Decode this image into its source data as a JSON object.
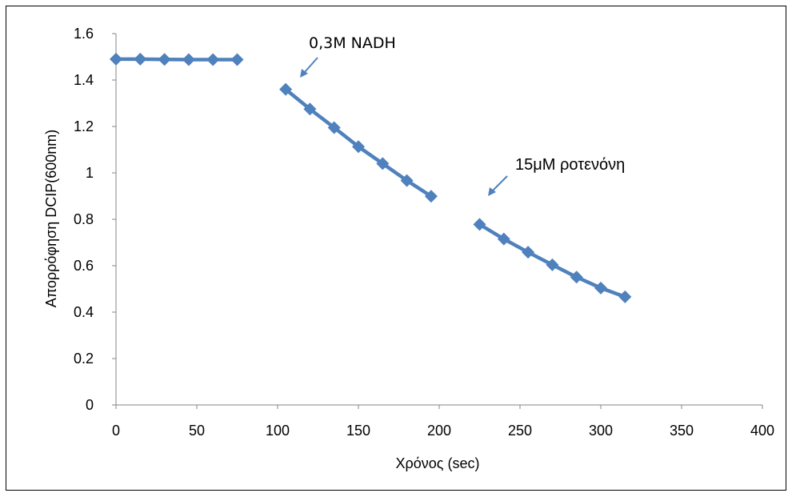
{
  "chart_data": {
    "type": "line",
    "title": "",
    "xlabel": "Χρόνος (sec)",
    "ylabel": "Απορρόφηση DCIP(600nm)",
    "xlim": [
      0,
      400
    ],
    "ylim": [
      0,
      1.6
    ],
    "x_ticks": [
      0,
      50,
      100,
      150,
      200,
      250,
      300,
      350,
      400
    ],
    "y_ticks": [
      0,
      0.2,
      0.4,
      0.6,
      0.8,
      1.0,
      1.2,
      1.4,
      1.6
    ],
    "x_tick_labels": [
      "0",
      "50",
      "100",
      "150",
      "200",
      "250",
      "300",
      "350",
      "400"
    ],
    "y_tick_labels": [
      "0",
      "0.2",
      "0.4",
      "0.6",
      "0.8",
      "1",
      "1.2",
      "1.4",
      "1.6"
    ],
    "grid": false,
    "legend": "none",
    "marker": "diamond",
    "color": "#4F81BD",
    "segments": [
      {
        "x": [
          0,
          15,
          30,
          45,
          60,
          75
        ],
        "y": [
          1.49,
          1.49,
          1.489,
          1.488,
          1.488,
          1.488
        ]
      },
      {
        "x": [
          105,
          120,
          135,
          150,
          165,
          180,
          195
        ],
        "y": [
          1.36,
          1.275,
          1.195,
          1.113,
          1.04,
          0.967,
          0.899
        ]
      },
      {
        "x": [
          225,
          240,
          255,
          270,
          285,
          300,
          315
        ],
        "y": [
          0.778,
          0.715,
          0.658,
          0.604,
          0.551,
          0.504,
          0.466
        ]
      }
    ],
    "annotations": [
      {
        "text": "0,3M NADH",
        "x": 115,
        "y": 1.4
      },
      {
        "text": "15μM ροτενόνη",
        "x": 232,
        "y": 0.9
      }
    ]
  }
}
